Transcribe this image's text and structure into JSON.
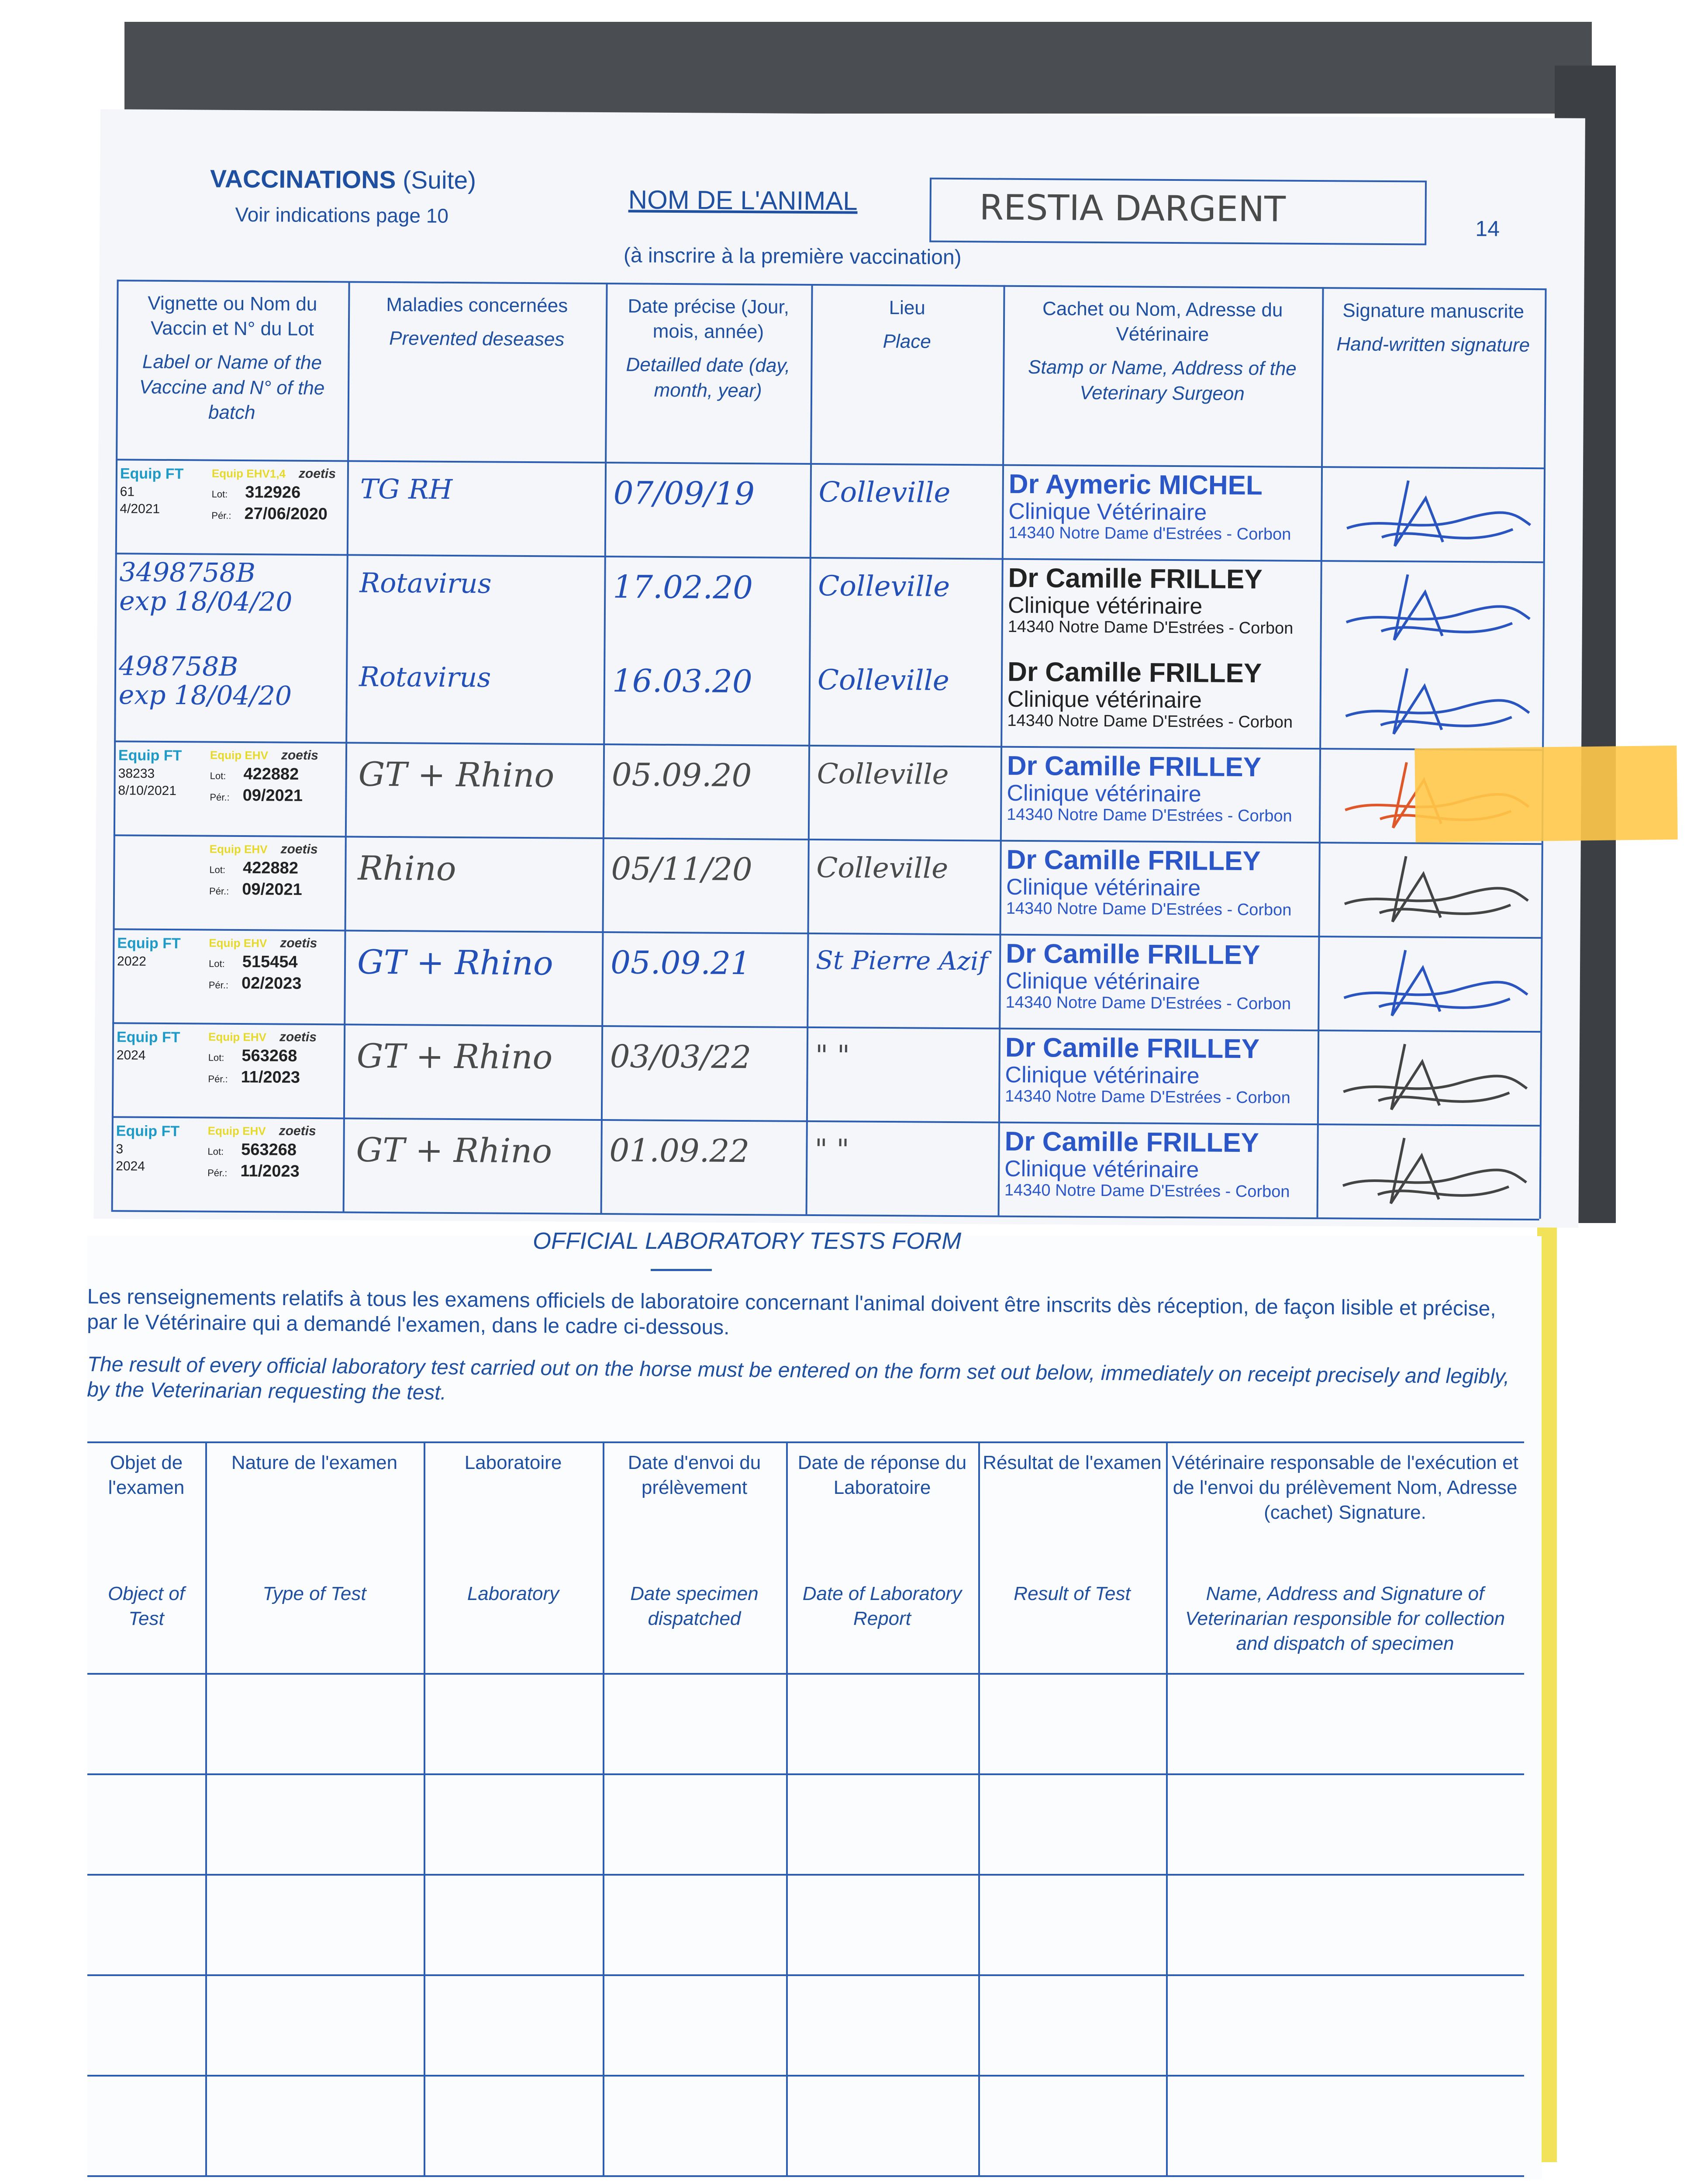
{
  "upper_page": {
    "section_title": "VACCINATIONS",
    "section_suffix": "(Suite)",
    "see_page": "Voir indications page 10",
    "animal_name_label": "NOM DE L'ANIMAL",
    "animal_name_note": "(à inscrire à la première vaccination)",
    "animal_name_value": "RESTIA DARGENT",
    "page_number": "14",
    "columns": [
      {
        "fr": "Vignette ou Nom du Vaccin et N° du Lot",
        "en": "Label or Name of the Vaccine and N° of the batch"
      },
      {
        "fr": "Maladies concernées",
        "en": "Prevented deseases"
      },
      {
        "fr": "Date précise (Jour, mois, année)",
        "en": "Detailled date (day, month, year)"
      },
      {
        "fr": "Lieu",
        "en": "Place"
      },
      {
        "fr": "Cachet ou Nom, Adresse du Vétérinaire",
        "en": "Stamp or Name, Address of the Veterinary Surgeon"
      },
      {
        "fr": "Signature manuscrite",
        "en": "Hand-written signature"
      }
    ],
    "rows": [
      {
        "vaccine": {
          "left": "Equip FT",
          "l1": "61",
          "l2": "4/2021",
          "brand": "Equip EHV1,4",
          "maker": "zoetis",
          "lot": "312926",
          "per": "27/06/2020"
        },
        "disease": "TG RH",
        "date": "07/09/19",
        "place": "Colleville",
        "vet": [
          "Dr Aymeric MICHEL",
          "Clinique Vétérinaire",
          "14340 Notre Dame d'Estrées - Corbon"
        ],
        "sig_color": "#2a55c0"
      },
      {
        "vaccine": {
          "hand": [
            "3498758B",
            "exp 18/04/20"
          ]
        },
        "disease": "Rotavirus",
        "date": "17.02.20",
        "place": "Colleville",
        "vet": [
          "Dr Camille FRILLEY",
          "Clinique vétérinaire",
          "14340 Notre Dame D'Estrées - Corbon"
        ],
        "sig_color": "#2a55c0"
      },
      {
        "vaccine": {
          "hand": [
            "498758B",
            "exp 18/04/20"
          ]
        },
        "disease": "Rotavirus",
        "date": "16.03.20",
        "place": "Colleville",
        "vet": [
          "Dr Camille FRILLEY",
          "Clinique vétérinaire",
          "14340 Notre Dame D'Estrées - Corbon"
        ],
        "sig_color": "#2a55c0"
      },
      {
        "vaccine": {
          "left": "Equip FT",
          "l1": "38233",
          "l2": "8/10/2021",
          "brand": "Equip EHV",
          "maker": "zoetis",
          "lot": "422882",
          "per": "09/2021"
        },
        "disease": "GT + Rhino",
        "date": "05.09.20",
        "place": "Colleville",
        "vet": [
          "Dr Camille FRILLEY",
          "Clinique vétérinaire",
          "14340 Notre Dame D'Estrées - Corbon"
        ],
        "sig_color": "#e0582a"
      },
      {
        "vaccine": {
          "left": "",
          "l1": "",
          "l2": "",
          "brand": "Equip EHV",
          "maker": "zoetis",
          "lot": "422882",
          "per": "09/2021"
        },
        "disease": "Rhino",
        "date": "05/11/20",
        "place": "Colleville",
        "vet": [
          "Dr Camille FRILLEY",
          "Clinique vétérinaire",
          "14340 Notre Dame D'Estrées - Corbon"
        ],
        "sig_color": "#444444"
      },
      {
        "vaccine": {
          "left": "Equip FT",
          "l1": "",
          "l2": "2022",
          "brand": "Equip EHV",
          "maker": "zoetis",
          "lot": "515454",
          "per": "02/2023"
        },
        "disease": "GT + Rhino",
        "date": "05.09.21",
        "place": "St Pierre Azif",
        "vet": [
          "Dr Camille FRILLEY",
          "Clinique vétérinaire",
          "14340 Notre Dame D'Estrées - Corbon"
        ],
        "sig_color": "#2a55c0"
      },
      {
        "vaccine": {
          "left": "Equip FT",
          "l1": "",
          "l2": "2024",
          "brand": "Equip EHV",
          "maker": "zoetis",
          "lot": "563268",
          "per": "11/2023"
        },
        "disease": "GT + Rhino",
        "date": "03/03/22",
        "place": "\" \"",
        "vet": [
          "Dr Camille FRILLEY",
          "Clinique vétérinaire",
          "14340 Notre Dame D'Estrées - Corbon"
        ],
        "sig_color": "#444444"
      },
      {
        "vaccine": {
          "left": "Equip FT",
          "l1": "3",
          "l2": "2024",
          "brand": "Equip EHV",
          "maker": "zoetis",
          "lot": "563268",
          "per": "11/2023"
        },
        "disease": "GT + Rhino",
        "date": "01.09.22",
        "place": "\" \"",
        "vet": [
          "Dr Camille FRILLEY",
          "Clinique vétérinaire",
          "14340 Notre Dame D'Estrées - Corbon"
        ],
        "sig_color": "#444444"
      }
    ],
    "lot_label": "Lot:",
    "per_label": "Pér.:"
  },
  "lower_page": {
    "title": "OFFICIAL LABORATORY TESTS FORM",
    "para_fr": "Les renseignements relatifs à tous les examens officiels de laboratoire concernant l'animal doivent être inscrits dès réception, de façon lisible et précise, par le Vétérinaire qui a demandé l'examen, dans le cadre ci-dessous.",
    "para_en": "The result of every official laboratory test carried out on the horse must be entered on the form set out below, immediately on receipt precisely and legibly, by the Veterinarian requesting the test.",
    "columns": [
      {
        "fr": "Objet de l'examen",
        "en": "Object of Test"
      },
      {
        "fr": "Nature de l'examen",
        "en": "Type of Test"
      },
      {
        "fr": "Laboratoire",
        "en": "Laboratory"
      },
      {
        "fr": "Date d'envoi du prélèvement",
        "en": "Date specimen dispatched"
      },
      {
        "fr": "Date de réponse du Laboratoire",
        "en": "Date of Laboratory Report"
      },
      {
        "fr": "Résultat de l'examen",
        "en": "Result of Test"
      },
      {
        "fr": "Vétérinaire responsable de l'exécution et de l'envoi du prélèvement Nom, Adresse (cachet) Signature.",
        "en": "Name, Address and Signature of Veterinarian responsible for collection and dispatch of specimen"
      }
    ]
  },
  "colors": {
    "form_blue": "#1f4fa0",
    "stamp_blue": "#2b56c8",
    "sticky_note": "#ffc94a",
    "binder_yellow": "#f1e25a"
  }
}
